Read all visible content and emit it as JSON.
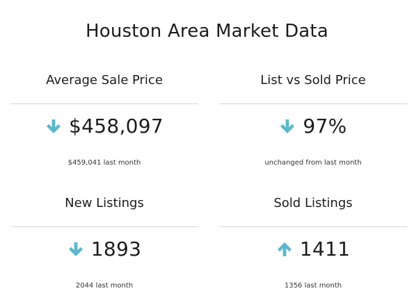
{
  "page": {
    "title": "Houston Area Market Data"
  },
  "colors": {
    "arrow": "#5bb8cc",
    "divider": "#d6d6d6",
    "text": "#1c1c1c"
  },
  "metrics": [
    {
      "heading": "Average Sale Price",
      "trend": "down",
      "trend_icon": "arrow-down-icon",
      "value": "$458,097",
      "note": "$459,041 last month"
    },
    {
      "heading": "List vs Sold Price",
      "trend": "down",
      "trend_icon": "arrow-down-icon",
      "value": "97%",
      "note": "unchanged from last month"
    },
    {
      "heading": "New Listings",
      "trend": "down",
      "trend_icon": "arrow-down-icon",
      "value": "1893",
      "note": "2044 last month"
    },
    {
      "heading": "Sold Listings",
      "trend": "up",
      "trend_icon": "arrow-up-icon",
      "value": "1411",
      "note": "1356 last month"
    }
  ]
}
